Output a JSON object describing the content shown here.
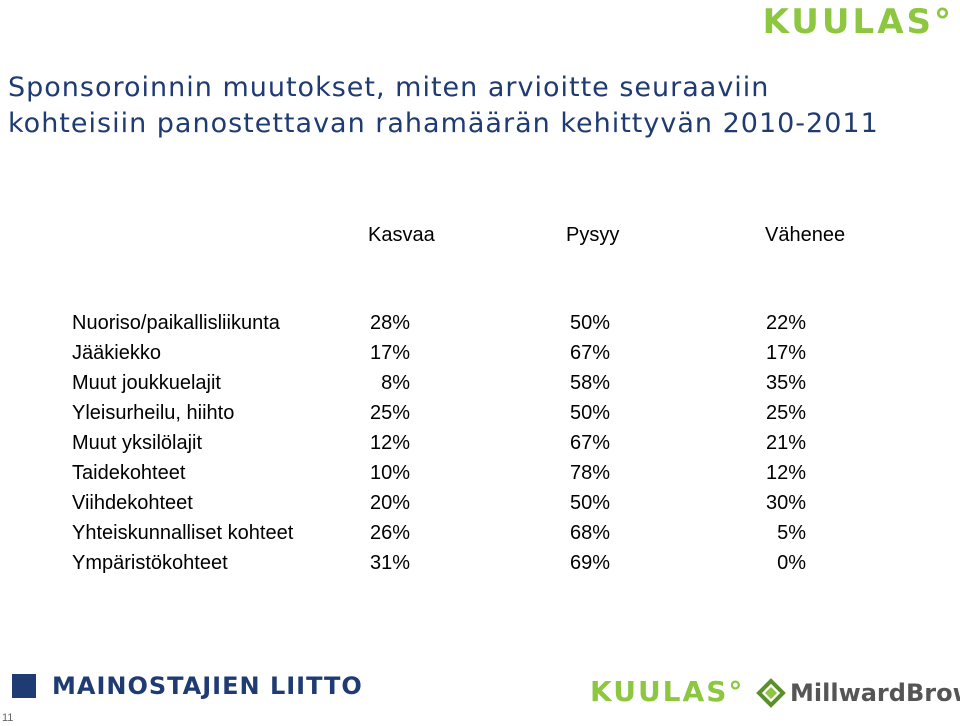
{
  "logos": {
    "kuulas_top": "KUULAS°",
    "mainostajien": "MAINOSTAJIEN LIITTO",
    "kuulas_bottom": "KUULAS°",
    "millwardbrown": "MillwardBrown"
  },
  "title": {
    "line1": "Sponsoroinnin muutokset, miten arvioitte seuraaviin",
    "line2": "kohteisiin panostettavan rahamäärän kehittyvän 2010-2011"
  },
  "table": {
    "headers": [
      "Kasvaa",
      "Pysyy",
      "Vähenee"
    ],
    "rows": [
      {
        "label": "Nuoriso/paikallisliikunta",
        "values": [
          "28%",
          "50%",
          "22%"
        ]
      },
      {
        "label": "Jääkiekko",
        "values": [
          "17%",
          "67%",
          "17%"
        ]
      },
      {
        "label": "Muut joukkuelajit",
        "values": [
          "8%",
          "58%",
          "35%"
        ]
      },
      {
        "label": "Yleisurheilu, hiihto",
        "values": [
          "25%",
          "50%",
          "25%"
        ]
      },
      {
        "label": "Muut yksilölajit",
        "values": [
          "12%",
          "67%",
          "21%"
        ]
      },
      {
        "label": "Taidekohteet",
        "values": [
          "10%",
          "78%",
          "12%"
        ]
      },
      {
        "label": "Viihdekohteet",
        "values": [
          "20%",
          "50%",
          "30%"
        ]
      },
      {
        "label": "Yhteiskunnalliset kohteet",
        "values": [
          "26%",
          "68%",
          "5%"
        ]
      },
      {
        "label": "Ympäristökohteet",
        "values": [
          "31%",
          "69%",
          "0%"
        ]
      }
    ]
  },
  "page_number": "11",
  "colors": {
    "title": "#1f3b73",
    "kuulas_green": "#8dc63f",
    "ml_blue": "#1f3b73",
    "mb_gray": "#555555"
  }
}
